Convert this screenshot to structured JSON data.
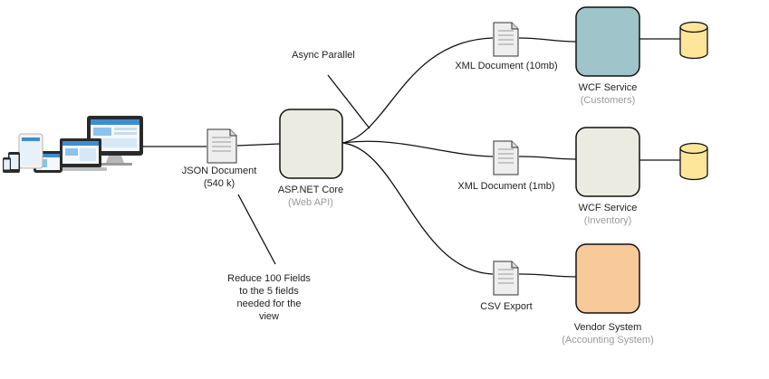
{
  "colors": {
    "core_fill": "#ecebe1",
    "customers_fill": "#9fc4c9",
    "inventory_fill": "#ecebe1",
    "vendor_fill": "#f8c999",
    "database_fill": "#fde59a",
    "subtitle_text": "#9a9a9a"
  },
  "client": {
    "icon": "multi-device-icon"
  },
  "json_document": {
    "line1": "JSON Document",
    "line2": "(540 k)"
  },
  "core": {
    "title": "ASP.NET Core",
    "subtitle": "(Web API)"
  },
  "annotations": {
    "async": "Async Parallel",
    "reduce": [
      "Reduce 100 Fields",
      "to the 5 fields",
      "needed for the",
      "view"
    ]
  },
  "documents": {
    "customers": "XML Document (10mb)",
    "inventory": "XML Document (1mb)",
    "vendor": "CSV Export"
  },
  "services": {
    "customers": {
      "title": "WCF Service",
      "subtitle": "(Customers)"
    },
    "inventory": {
      "title": "WCF Service",
      "subtitle": "(Inventory)"
    },
    "vendor": {
      "title": "Vendor System",
      "subtitle": "(Accounting System)"
    }
  }
}
